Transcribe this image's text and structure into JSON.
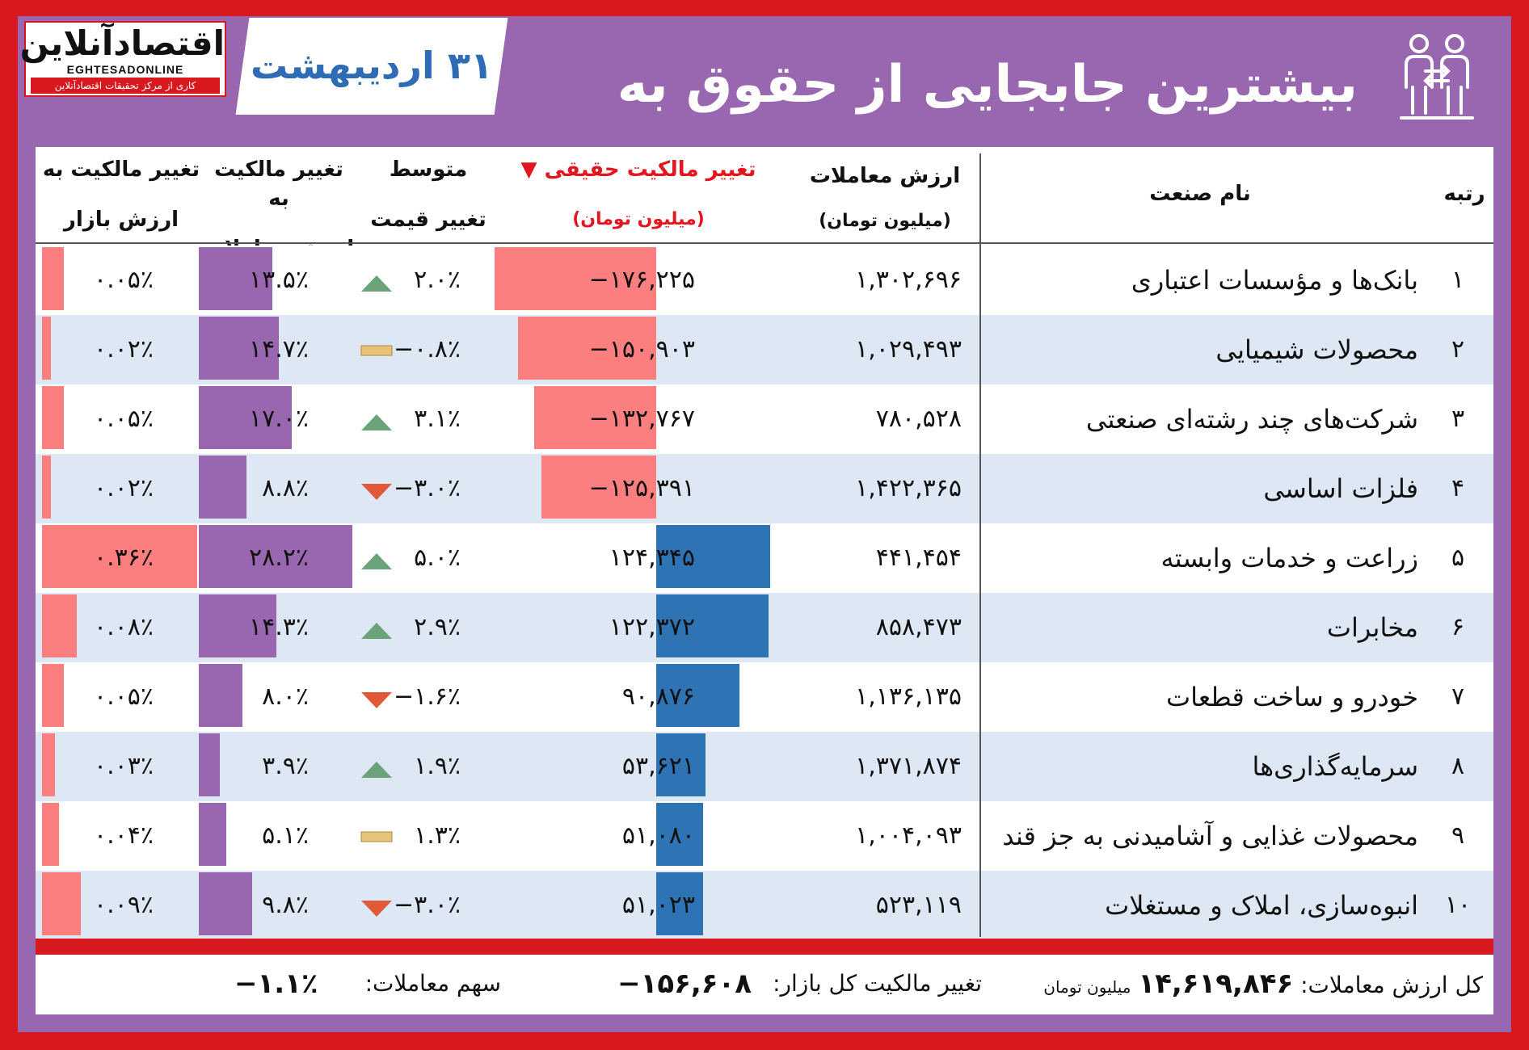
{
  "logo": {
    "main": "اقتصادآنلاین",
    "latin": "EGHTESADONLINE",
    "tagline": "کاری از مرکز تحقیقات اقتصادآنلاین"
  },
  "date": "۳۱ اردیبهشت",
  "title": "بیشترین جابجایی از حقوق به حقیقی",
  "headers": {
    "rank": "رتبه",
    "industry": "نام صنعت",
    "value_line1": "ارزش معاملات",
    "value_line2": "(میلیون تومان)",
    "real_line1": "تغییر مالکیت حقیقی ▼",
    "real_line2": "(میلیون تومان)",
    "price_line1": "متوسط",
    "price_line2": "تغییر قیمت",
    "trade_line1": "تغییر مالکیت به",
    "trade_line2": "ارزش معاملات",
    "market_line1": "تغییر مالکیت به",
    "market_line2": "ارزش بازار"
  },
  "rows": [
    {
      "rank": "۱",
      "name": "بانک‌ها و مؤسسات اعتباری",
      "value": "۱,۳۰۲,۶۹۶",
      "real": "−۱۷۶,۲۲۵",
      "real_num": -176225,
      "price": "۲.۰٪",
      "trend": "up",
      "trade": "۱۳.۵٪",
      "trade_num": 13.5,
      "market": "۰.۰۵٪",
      "market_num": 0.05
    },
    {
      "rank": "۲",
      "name": "محصولات شیمیایی",
      "value": "۱,۰۲۹,۴۹۳",
      "real": "−۱۵۰,۹۰۳",
      "real_num": -150903,
      "price": "−۰.۸٪",
      "trend": "flat",
      "trade": "۱۴.۷٪",
      "trade_num": 14.7,
      "market": "۰.۰۲٪",
      "market_num": 0.02
    },
    {
      "rank": "۳",
      "name": "شرکت‌های چند رشته‌ای صنعتی",
      "value": "۷۸۰,۵۲۸",
      "real": "−۱۳۲,۷۶۷",
      "real_num": -132767,
      "price": "۳.۱٪",
      "trend": "up",
      "trade": "۱۷.۰٪",
      "trade_num": 17.0,
      "market": "۰.۰۵٪",
      "market_num": 0.05
    },
    {
      "rank": "۴",
      "name": "فلزات اساسی",
      "value": "۱,۴۲۲,۳۶۵",
      "real": "−۱۲۵,۳۹۱",
      "real_num": -125391,
      "price": "−۳.۰٪",
      "trend": "down",
      "trade": "۸.۸٪",
      "trade_num": 8.8,
      "market": "۰.۰۲٪",
      "market_num": 0.02
    },
    {
      "rank": "۵",
      "name": "زراعت و خدمات وابسته",
      "value": "۴۴۱,۴۵۴",
      "real": "۱۲۴,۳۴۵",
      "real_num": 124345,
      "price": "۵.۰٪",
      "trend": "up",
      "trade": "۲۸.۲٪",
      "trade_num": 28.2,
      "market": "۰.۳۶٪",
      "market_num": 0.36
    },
    {
      "rank": "۶",
      "name": "مخابرات",
      "value": "۸۵۸,۴۷۳",
      "real": "۱۲۲,۳۷۲",
      "real_num": 122372,
      "price": "۲.۹٪",
      "trend": "up",
      "trade": "۱۴.۳٪",
      "trade_num": 14.3,
      "market": "۰.۰۸٪",
      "market_num": 0.08
    },
    {
      "rank": "۷",
      "name": "خودرو و ساخت قطعات",
      "value": "۱,۱۳۶,۱۳۵",
      "real": "۹۰,۸۷۶",
      "real_num": 90876,
      "price": "−۱.۶٪",
      "trend": "down",
      "trade": "۸.۰٪",
      "trade_num": 8.0,
      "market": "۰.۰۵٪",
      "market_num": 0.05
    },
    {
      "rank": "۸",
      "name": "سرمایه‌گذاری‌ها",
      "value": "۱,۳۷۱,۸۷۴",
      "real": "۵۳,۶۲۱",
      "real_num": 53621,
      "price": "۱.۹٪",
      "trend": "up",
      "trade": "۳.۹٪",
      "trade_num": 3.9,
      "market": "۰.۰۳٪",
      "market_num": 0.03
    },
    {
      "rank": "۹",
      "name": "محصولات غذایی و آشامیدنی به جز قند",
      "value": "۱,۰۰۴,۰۹۳",
      "real": "۵۱,۰۸۰",
      "real_num": 51080,
      "price": "۱.۳٪",
      "trend": "flat",
      "trade": "۵.۱٪",
      "trade_num": 5.1,
      "market": "۰.۰۴٪",
      "market_num": 0.04
    },
    {
      "rank": "۱۰",
      "name": "انبوه‌سازی، املاک و مستغلات",
      "value": "۵۲۳,۱۱۹",
      "real": "۵۱,۰۲۳",
      "real_num": 51023,
      "price": "−۳.۰٪",
      "trend": "down",
      "trade": "۹.۸٪",
      "trade_num": 9.8,
      "market": "۰.۰۹٪",
      "market_num": 0.09
    }
  ],
  "footer": {
    "total_label": "کل ارزش معاملات:",
    "total_value": "۱۴,۶۱۹,۸۴۶",
    "total_unit": "میلیون تومان",
    "market_change_label": "تغییر مالکیت کل بازار:",
    "market_change_value": "−۱۵۶,۶۰۸",
    "share_label": "سهم معاملات:",
    "share_value": "−۱.۱٪"
  },
  "colors": {
    "frame": "#d7191f",
    "panel": "#9867b0",
    "negative_bar": "#fb7f7f",
    "positive_bar": "#2e74b5",
    "trade_bar": "#9867b0",
    "up": "#6aa27a",
    "down": "#e2593a",
    "flat": "#e6c37a"
  }
}
